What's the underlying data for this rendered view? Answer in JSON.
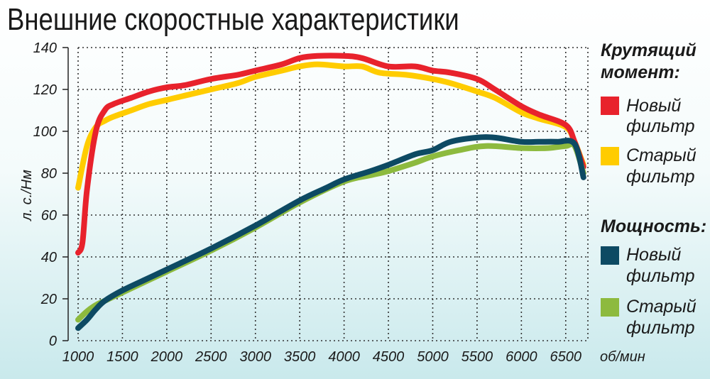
{
  "chart_data": {
    "type": "line",
    "title": "Внешние скоростные характеристики",
    "xlabel": "об/мин",
    "ylabel": "л. с./Нм",
    "xlim": [
      1000,
      6750
    ],
    "ylim": [
      0,
      140
    ],
    "x_ticks": [
      "1000",
      "1500",
      "2000",
      "2500",
      "3000",
      "3500",
      "4000",
      "4500",
      "5000",
      "5500",
      "6000",
      "6500"
    ],
    "y_ticks": [
      "0",
      "20",
      "40",
      "60",
      "80",
      "100",
      "120",
      "140"
    ],
    "grid": true,
    "legend_position": "right",
    "legend": {
      "torque_header": "Крутящий момент:",
      "power_header": "Мощность:",
      "items": [
        {
          "label": "Новый фильтр",
          "color": "#e8222c"
        },
        {
          "label": "Старый фильтр",
          "color": "#ffcc00"
        },
        {
          "label": "Новый фильтр",
          "color": "#0d4a63"
        },
        {
          "label": "Старый фильтр",
          "color": "#8dba3e"
        }
      ]
    },
    "series": [
      {
        "name": "Крутящий момент: Новый фильтр",
        "color": "#e8222c",
        "x": [
          1000,
          1050,
          1100,
          1200,
          1300,
          1400,
          1600,
          1800,
          2000,
          2200,
          2500,
          2800,
          3000,
          3300,
          3500,
          3700,
          4000,
          4200,
          4500,
          4800,
          5000,
          5200,
          5500,
          5700,
          6000,
          6200,
          6500,
          6600,
          6700
        ],
        "y": [
          42,
          47,
          72,
          100,
          110,
          113,
          116,
          119,
          121,
          122,
          125,
          127,
          129,
          132,
          135,
          136,
          136,
          135,
          131,
          131,
          129,
          128,
          125,
          120,
          112,
          108,
          103,
          95,
          83
        ]
      },
      {
        "name": "Крутящий момент: Старый фильтр",
        "color": "#ffcc00",
        "x": [
          1000,
          1100,
          1200,
          1300,
          1400,
          1600,
          1800,
          2000,
          2200,
          2500,
          2800,
          3000,
          3300,
          3500,
          3700,
          4000,
          4200,
          4400,
          4700,
          5000,
          5200,
          5500,
          5700,
          6000,
          6200,
          6500,
          6600,
          6700
        ],
        "y": [
          73,
          93,
          102,
          105,
          107,
          110,
          113,
          115,
          117,
          120,
          123,
          126,
          129,
          131,
          132,
          131,
          131,
          128,
          127,
          125,
          123,
          119,
          116,
          109,
          106,
          102,
          95,
          84
        ]
      },
      {
        "name": "Мощность: Новый фильтр",
        "color": "#0d4a63",
        "x": [
          1000,
          1100,
          1200,
          1300,
          1500,
          1800,
          2000,
          2500,
          3000,
          3500,
          3800,
          4000,
          4300,
          4500,
          4800,
          5000,
          5200,
          5500,
          5700,
          6000,
          6200,
          6400,
          6600,
          6700
        ],
        "y": [
          6,
          10,
          15,
          19,
          24,
          30,
          34,
          44,
          55,
          67,
          73,
          77,
          81,
          84,
          89,
          91,
          95,
          97,
          97,
          95,
          95,
          95,
          94,
          78
        ]
      },
      {
        "name": "Мощность: Старый фильтр",
        "color": "#8dba3e",
        "x": [
          1000,
          1100,
          1200,
          1300,
          1500,
          1800,
          2000,
          2500,
          3000,
          3500,
          4000,
          4300,
          4500,
          4800,
          5000,
          5300,
          5600,
          6000,
          6300,
          6500,
          6600,
          6700
        ],
        "y": [
          10,
          14,
          17,
          19,
          23,
          29,
          33,
          43,
          54,
          66,
          76,
          79,
          81,
          85,
          88,
          91,
          93,
          92,
          92,
          93,
          93,
          80
        ]
      }
    ]
  }
}
